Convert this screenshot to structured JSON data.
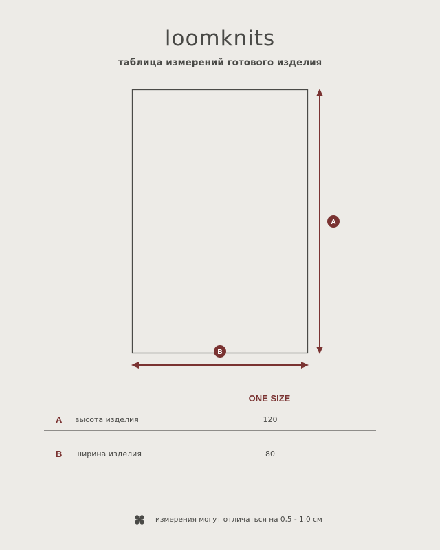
{
  "header": {
    "brand": "loomknits",
    "subtitle": "таблица измерений готового изделия"
  },
  "diagram": {
    "marker_a": "A",
    "marker_b": "B"
  },
  "colors": {
    "background": "#edebe7",
    "accent": "#7a3332",
    "text": "#4a4a47"
  },
  "table": {
    "column_header": "ONE SIZE",
    "rows": [
      {
        "label": "A",
        "description": "высота изделия",
        "value": "120"
      },
      {
        "label": "B",
        "description": "ширина изделия",
        "value": "80"
      }
    ]
  },
  "footnote": {
    "icon": "flower-icon",
    "text": "измерения могут отличаться на 0,5 - 1,0 см"
  }
}
